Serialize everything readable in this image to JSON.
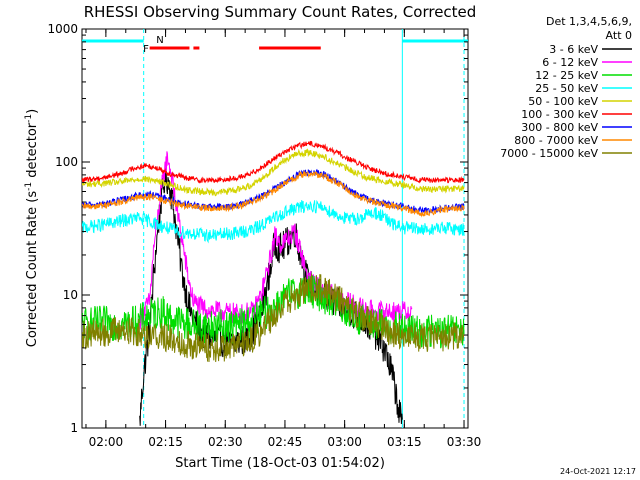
{
  "chart_data": {
    "type": "line",
    "title": "RHESSI Observing Summary Count Rates, Corrected",
    "xlabel": "Start Time (18-Oct-03 01:54:02)",
    "ylabel": "Corrected Count Rate (s⁻¹ detector⁻¹)",
    "ylabel_parts": {
      "main": "Corrected Count Rate (s",
      "exp1": "-1",
      "mid": " detector",
      "exp2": "-1",
      "end": ")"
    },
    "yscale": "log",
    "ylim": [
      1,
      1000
    ],
    "xlim_minutes": [
      0,
      97
    ],
    "x_ticks": [
      {
        "label": "02:00",
        "min": 6
      },
      {
        "label": "02:15",
        "min": 21
      },
      {
        "label": "02:30",
        "min": 36
      },
      {
        "label": "02:45",
        "min": 51
      },
      {
        "label": "03:00",
        "min": 66
      },
      {
        "label": "03:15",
        "min": 81
      },
      {
        "label": "03:30",
        "min": 96
      }
    ],
    "y_ticks": [
      {
        "label": "1",
        "value": 1
      },
      {
        "label": "10",
        "value": 10
      },
      {
        "label": "100",
        "value": 100
      },
      {
        "label": "1000",
        "value": 1000
      }
    ],
    "legend": {
      "position": "right",
      "header_line1": "Det 1,3,4,5,6,9,",
      "header_line2": "Att 0",
      "entries": [
        {
          "label": "3 - 6 keV",
          "color": "#000000"
        },
        {
          "label": "6 - 12 keV",
          "color": "#ff00ff"
        },
        {
          "label": "12 - 25 keV",
          "color": "#00dd00"
        },
        {
          "label": "25 - 50 keV",
          "color": "#00ffff"
        },
        {
          "label": "50 - 100 keV",
          "color": "#d4d400"
        },
        {
          "label": "100 - 300 keV",
          "color": "#ff0000"
        },
        {
          "label": "300 - 800 keV",
          "color": "#0000ff"
        },
        {
          "label": "800 - 7000 keV",
          "color": "#ff8800"
        },
        {
          "label": "7000 - 15000 keV",
          "color": "#808000"
        }
      ]
    },
    "flags": {
      "saa_label": "F",
      "night_label": "N",
      "night_color": "#00ffff",
      "flare_color": "#ff0000",
      "night_periods": [
        [
          0,
          15.5
        ],
        [
          80.5,
          97
        ]
      ],
      "flare_periods": [
        [
          17,
          27
        ],
        [
          28,
          29.5
        ],
        [
          44.5,
          60
        ]
      ]
    },
    "night_boundaries_min": [
      15.5,
      80.5,
      96
    ],
    "series": [
      {
        "name": "3 - 6 keV",
        "color": "#000000",
        "start": 14.5,
        "end": 80.5,
        "points": [
          [
            14.5,
            1.1
          ],
          [
            15.3,
            2.2
          ],
          [
            15.9,
            3.2
          ],
          [
            17,
            5.5
          ],
          [
            18,
            14
          ],
          [
            19,
            30
          ],
          [
            20,
            55
          ],
          [
            21,
            80
          ],
          [
            22,
            68
          ],
          [
            23,
            45
          ],
          [
            24,
            28
          ],
          [
            25,
            16
          ],
          [
            26,
            11
          ],
          [
            27,
            8
          ],
          [
            28,
            6.5
          ],
          [
            30,
            5.2
          ],
          [
            34,
            4.6
          ],
          [
            38,
            4.3
          ],
          [
            42,
            4.8
          ],
          [
            45,
            7
          ],
          [
            47,
            14
          ],
          [
            48.5,
            25
          ],
          [
            50,
            22
          ],
          [
            52,
            26
          ],
          [
            53.5,
            30
          ],
          [
            55,
            20
          ],
          [
            57,
            12
          ],
          [
            60,
            10
          ],
          [
            63,
            9
          ],
          [
            66,
            8
          ],
          [
            69,
            7
          ],
          [
            72,
            6
          ],
          [
            74,
            5
          ],
          [
            76,
            4
          ],
          [
            78,
            2.5
          ],
          [
            80.5,
            1
          ]
        ]
      },
      {
        "name": "6 - 12 keV",
        "color": "#ff00ff",
        "start": 14.5,
        "end": 83,
        "points": [
          [
            14.5,
            6.5
          ],
          [
            17,
            9
          ],
          [
            18,
            22
          ],
          [
            19.5,
            50
          ],
          [
            20.5,
            80
          ],
          [
            21.5,
            110
          ],
          [
            22.5,
            80
          ],
          [
            23.5,
            50
          ],
          [
            25,
            28
          ],
          [
            26,
            18
          ],
          [
            27,
            12
          ],
          [
            28,
            9
          ],
          [
            30,
            8
          ],
          [
            34,
            7.5
          ],
          [
            40,
            7.2
          ],
          [
            43,
            7.5
          ],
          [
            45,
            10
          ],
          [
            47,
            17
          ],
          [
            48.5,
            28
          ],
          [
            50,
            24
          ],
          [
            52,
            27
          ],
          [
            53.5,
            30
          ],
          [
            55,
            21
          ],
          [
            57,
            13
          ],
          [
            60,
            11
          ],
          [
            63,
            10
          ],
          [
            66,
            9
          ],
          [
            70,
            8
          ],
          [
            74,
            7.5
          ],
          [
            78,
            7.5
          ],
          [
            81,
            7.5
          ],
          [
            83,
            7.5
          ]
        ]
      },
      {
        "name": "12 - 25 keV",
        "color": "#00dd00",
        "start": 0,
        "end": 96,
        "points": [
          [
            0,
            6
          ],
          [
            5,
            6.2
          ],
          [
            10,
            6
          ],
          [
            14,
            6.3
          ],
          [
            17,
            7
          ],
          [
            20,
            7.5
          ],
          [
            23,
            6.5
          ],
          [
            27,
            6
          ],
          [
            32,
            5.8
          ],
          [
            38,
            5.8
          ],
          [
            43,
            6.5
          ],
          [
            48,
            8
          ],
          [
            52,
            10
          ],
          [
            56,
            11
          ],
          [
            60,
            10
          ],
          [
            64,
            8.5
          ],
          [
            68,
            7
          ],
          [
            72,
            6.2
          ],
          [
            76,
            5.8
          ],
          [
            80,
            5.5
          ],
          [
            85,
            5.3
          ],
          [
            90,
            5.3
          ],
          [
            96,
            5.3
          ]
        ]
      },
      {
        "name": "25 - 50 keV",
        "color": "#00ffff",
        "start": 0,
        "end": 96,
        "points": [
          [
            0,
            32
          ],
          [
            6,
            34
          ],
          [
            10,
            36
          ],
          [
            14,
            38
          ],
          [
            17,
            36
          ],
          [
            20,
            33
          ],
          [
            24,
            30
          ],
          [
            28,
            29
          ],
          [
            32,
            28
          ],
          [
            38,
            29
          ],
          [
            43,
            31
          ],
          [
            47,
            36
          ],
          [
            51,
            42
          ],
          [
            55,
            46
          ],
          [
            58,
            47
          ],
          [
            61,
            45
          ],
          [
            64,
            40
          ],
          [
            67,
            37
          ],
          [
            70,
            38
          ],
          [
            73,
            42
          ],
          [
            75,
            40
          ],
          [
            78,
            34
          ],
          [
            81,
            32
          ],
          [
            86,
            31
          ],
          [
            91,
            32
          ],
          [
            96,
            31
          ]
        ]
      },
      {
        "name": "50 - 100 keV",
        "color": "#d4d400",
        "start": 0,
        "end": 96,
        "points": [
          [
            0,
            68
          ],
          [
            5,
            69
          ],
          [
            10,
            71
          ],
          [
            15,
            75
          ],
          [
            18,
            73
          ],
          [
            22,
            68
          ],
          [
            26,
            62
          ],
          [
            30,
            60
          ],
          [
            34,
            59
          ],
          [
            38,
            61
          ],
          [
            42,
            66
          ],
          [
            46,
            78
          ],
          [
            50,
            100
          ],
          [
            54,
            115
          ],
          [
            57,
            118
          ],
          [
            60,
            112
          ],
          [
            64,
            98
          ],
          [
            68,
            85
          ],
          [
            72,
            76
          ],
          [
            76,
            72
          ],
          [
            80,
            68
          ],
          [
            84,
            64
          ],
          [
            88,
            62
          ],
          [
            92,
            63
          ],
          [
            96,
            63
          ]
        ]
      },
      {
        "name": "100 - 300 keV",
        "color": "#ff0000",
        "start": 0,
        "end": 96,
        "points": [
          [
            0,
            73
          ],
          [
            5,
            76
          ],
          [
            10,
            82
          ],
          [
            13,
            90
          ],
          [
            16,
            94
          ],
          [
            19,
            90
          ],
          [
            22,
            82
          ],
          [
            26,
            76
          ],
          [
            30,
            73
          ],
          [
            34,
            73
          ],
          [
            38,
            75
          ],
          [
            42,
            80
          ],
          [
            46,
            95
          ],
          [
            50,
            115
          ],
          [
            54,
            132
          ],
          [
            57,
            138
          ],
          [
            60,
            132
          ],
          [
            64,
            118
          ],
          [
            68,
            102
          ],
          [
            72,
            90
          ],
          [
            76,
            82
          ],
          [
            80,
            78
          ],
          [
            84,
            74
          ],
          [
            88,
            73
          ],
          [
            92,
            73
          ],
          [
            96,
            73
          ]
        ]
      },
      {
        "name": "300 - 800 keV",
        "color": "#0000ff",
        "start": 0,
        "end": 96,
        "points": [
          [
            0,
            47
          ],
          [
            5,
            48
          ],
          [
            10,
            52
          ],
          [
            14,
            56
          ],
          [
            17,
            57
          ],
          [
            20,
            54
          ],
          [
            24,
            50
          ],
          [
            28,
            47
          ],
          [
            32,
            46
          ],
          [
            36,
            46
          ],
          [
            40,
            48
          ],
          [
            44,
            53
          ],
          [
            48,
            62
          ],
          [
            52,
            74
          ],
          [
            55,
            82
          ],
          [
            58,
            84
          ],
          [
            61,
            80
          ],
          [
            64,
            72
          ],
          [
            67,
            62
          ],
          [
            70,
            55
          ],
          [
            74,
            50
          ],
          [
            78,
            48
          ],
          [
            81,
            46
          ],
          [
            84,
            44
          ],
          [
            87,
            43
          ],
          [
            91,
            45
          ],
          [
            96,
            46
          ]
        ]
      },
      {
        "name": "800 - 7000 keV",
        "color": "#ff8800",
        "start": 0,
        "end": 96,
        "points": [
          [
            0,
            46
          ],
          [
            5,
            47
          ],
          [
            10,
            50
          ],
          [
            14,
            54
          ],
          [
            17,
            55
          ],
          [
            20,
            52
          ],
          [
            24,
            48
          ],
          [
            28,
            46
          ],
          [
            32,
            45
          ],
          [
            36,
            45
          ],
          [
            40,
            47
          ],
          [
            44,
            52
          ],
          [
            48,
            60
          ],
          [
            52,
            72
          ],
          [
            55,
            80
          ],
          [
            58,
            82
          ],
          [
            61,
            78
          ],
          [
            64,
            70
          ],
          [
            67,
            61
          ],
          [
            70,
            54
          ],
          [
            74,
            49
          ],
          [
            78,
            47
          ],
          [
            81,
            45
          ],
          [
            84,
            42
          ],
          [
            87,
            41
          ],
          [
            91,
            44
          ],
          [
            96,
            45
          ]
        ]
      },
      {
        "name": "7000 - 15000 keV",
        "color": "#808000",
        "start": 0,
        "end": 96,
        "points": [
          [
            0,
            5
          ],
          [
            5,
            5.2
          ],
          [
            10,
            5.5
          ],
          [
            14,
            5.2
          ],
          [
            17,
            5
          ],
          [
            20,
            4.9
          ],
          [
            24,
            4.5
          ],
          [
            28,
            4.2
          ],
          [
            32,
            4
          ],
          [
            36,
            4
          ],
          [
            40,
            4.2
          ],
          [
            44,
            5
          ],
          [
            48,
            7
          ],
          [
            52,
            9
          ],
          [
            56,
            11
          ],
          [
            59,
            11.5
          ],
          [
            62,
            10.5
          ],
          [
            65,
            9
          ],
          [
            68,
            7.5
          ],
          [
            72,
            6.5
          ],
          [
            76,
            5.5
          ],
          [
            80,
            5
          ],
          [
            84,
            4.8
          ],
          [
            88,
            4.8
          ],
          [
            92,
            4.8
          ],
          [
            96,
            5
          ]
        ]
      }
    ]
  },
  "footer_timestamp": "24-Oct-2021 12:17"
}
